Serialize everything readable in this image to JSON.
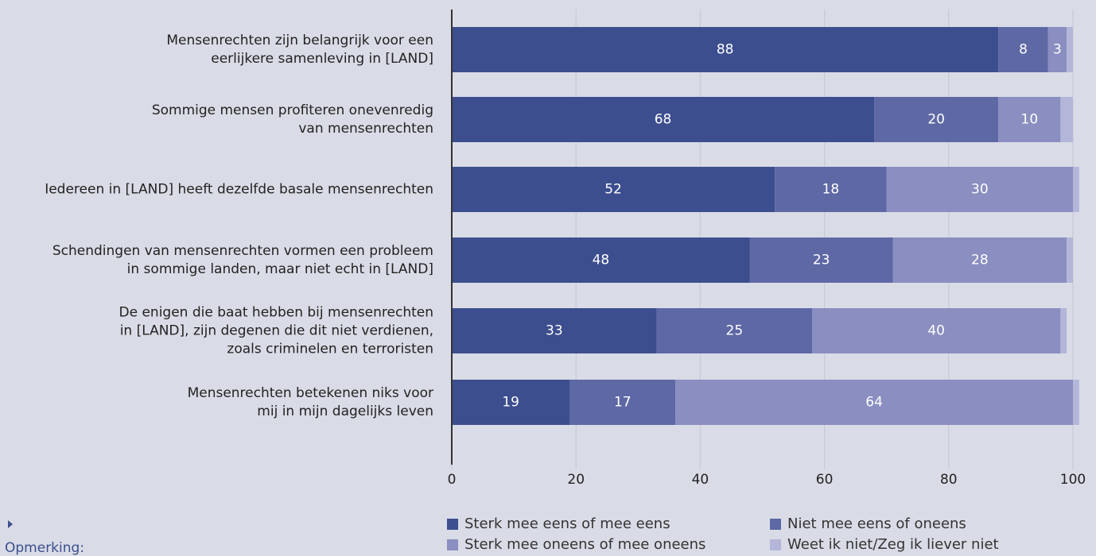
{
  "chart_data": {
    "type": "stacked_bar_horizontal",
    "categories": [
      [
        "Mensenrechten zijn belangrijk voor een",
        "eerlijkere samenleving in [LAND]"
      ],
      [
        "Sommige mensen profiteren onevenredig",
        "van mensenrechten"
      ],
      [
        "Iedereen in [LAND] heeft dezelfde basale mensenrechten"
      ],
      [
        "Schendingen van mensenrechten vormen een probleem",
        "in sommige landen, maar niet echt in [LAND]"
      ],
      [
        "De enigen die baat hebben bij mensenrechten",
        "in [LAND], zijn degenen die dit niet verdienen,",
        "zoals criminelen en terroristen"
      ],
      [
        "Mensenrechten betekenen niks voor",
        "mij in mijn dagelijks leven"
      ]
    ],
    "series": [
      {
        "name": "Sterk mee eens of mee eens",
        "color": "#3c4e8e",
        "values": [
          88,
          68,
          52,
          48,
          33,
          19
        ],
        "show_labels": true
      },
      {
        "name": "Niet mee eens of oneens",
        "color": "#5e68a5",
        "values": [
          8,
          20,
          18,
          23,
          25,
          17
        ],
        "show_labels": true
      },
      {
        "name": "Sterk mee oneens of mee oneens",
        "color": "#8a8ec0",
        "values": [
          3,
          10,
          30,
          28,
          40,
          64
        ],
        "show_labels": true
      },
      {
        "name": "Weet ik niet/Zeg ik liever niet",
        "color": "#b4b6d9",
        "values": [
          1,
          2,
          1,
          1,
          1,
          1
        ],
        "show_labels": false
      }
    ],
    "xlim": [
      0,
      100
    ],
    "xticks": [
      0,
      20,
      40,
      60,
      80,
      100
    ],
    "grid": true,
    "note": "Opmerking:"
  }
}
